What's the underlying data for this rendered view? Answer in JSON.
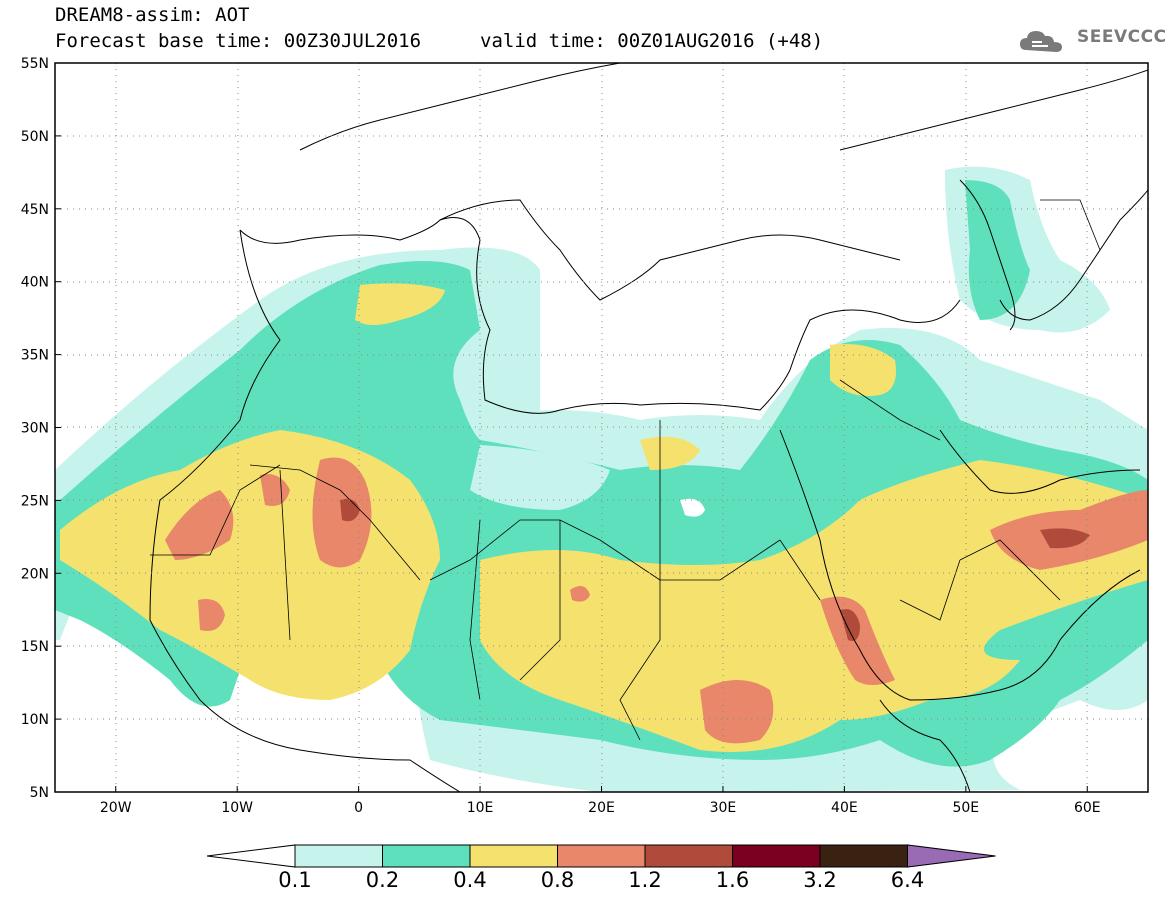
{
  "header": {
    "model_line": "DREAM8-assim: AOT",
    "base_time": "Forecast base time: 00Z30JUL2016",
    "valid_time": "valid time: 00Z01AUG2016 (+48)",
    "logo": "SEEVCCC",
    "logo_icon": "cloud-icon"
  },
  "map": {
    "lon_range": [
      -25,
      65
    ],
    "lat_range": [
      5,
      55
    ],
    "lat_labels": [
      "5N",
      "10N",
      "15N",
      "20N",
      "25N",
      "30N",
      "35N",
      "40N",
      "45N",
      "50N",
      "55N"
    ],
    "lon_labels": [
      "20W",
      "10W",
      "0",
      "10E",
      "20E",
      "30E",
      "40E",
      "50E",
      "60E"
    ],
    "gridlines": "dotted"
  },
  "colorbar": {
    "levels": [
      "0.1",
      "0.2",
      "0.4",
      "0.8",
      "1.2",
      "1.6",
      "3.2",
      "6.4"
    ],
    "colors": [
      "#c6f3ec",
      "#5fe0bc",
      "#f5e26e",
      "#e8876a",
      "#b04b3c",
      "#7a0020",
      "#3a2212",
      "#9a6bb5"
    ],
    "low_end_color": "#ffffff"
  }
}
